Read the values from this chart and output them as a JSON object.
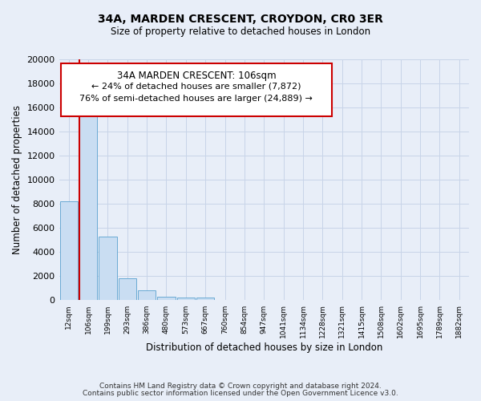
{
  "title": "34A, MARDEN CRESCENT, CROYDON, CR0 3ER",
  "subtitle": "Size of property relative to detached houses in London",
  "xlabel": "Distribution of detached houses by size in London",
  "ylabel": "Number of detached properties",
  "footer_line1": "Contains HM Land Registry data © Crown copyright and database right 2024.",
  "footer_line2": "Contains public sector information licensed under the Open Government Licence v3.0.",
  "bin_labels": [
    "12sqm",
    "106sqm",
    "199sqm",
    "293sqm",
    "386sqm",
    "480sqm",
    "573sqm",
    "667sqm",
    "760sqm",
    "854sqm",
    "947sqm",
    "1041sqm",
    "1134sqm",
    "1228sqm",
    "1321sqm",
    "1415sqm",
    "1508sqm",
    "1602sqm",
    "1695sqm",
    "1789sqm",
    "1882sqm"
  ],
  "bar_heights": [
    8200,
    16600,
    5300,
    1850,
    800,
    280,
    200,
    200,
    0,
    0,
    0,
    0,
    0,
    0,
    0,
    0,
    0,
    0,
    0,
    0,
    0
  ],
  "bar_color": "#c9ddf2",
  "bar_edge_color": "#6aaad4",
  "highlight_bar_index": 1,
  "red_line_bar_index": 1,
  "highlight_edge_color": "#cc0000",
  "ylim": [
    0,
    20000
  ],
  "yticks": [
    0,
    2000,
    4000,
    6000,
    8000,
    10000,
    12000,
    14000,
    16000,
    18000,
    20000
  ],
  "annotation_title": "34A MARDEN CRESCENT: 106sqm",
  "annotation_line1": "← 24% of detached houses are smaller (7,872)",
  "annotation_line2": "76% of semi-detached houses are larger (24,889) →",
  "grid_color": "#c8d4e8",
  "bg_color": "#e8eef8",
  "plot_bg_color": "#e8eef8"
}
